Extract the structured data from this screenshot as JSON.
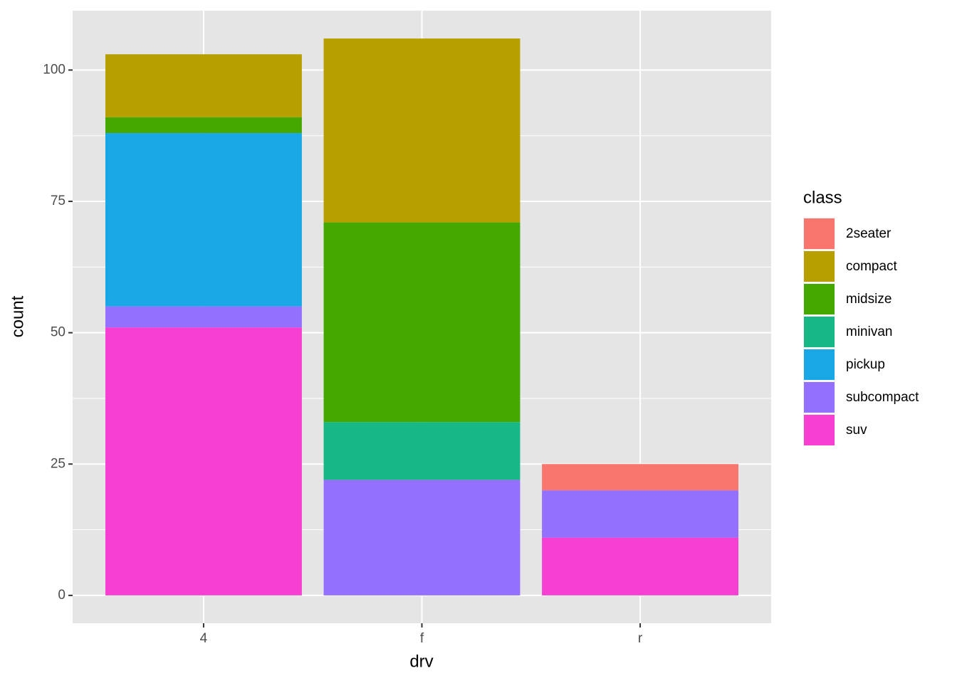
{
  "chart_data": {
    "type": "stacked-bar",
    "x_label": "drv",
    "y_label": "count",
    "legend_title": "class",
    "categories": [
      "4",
      "f",
      "r"
    ],
    "series": [
      {
        "name": "2seater",
        "color": "#f8766d",
        "values": [
          0,
          0,
          5
        ]
      },
      {
        "name": "compact",
        "color": "#b79f00",
        "values": [
          12,
          35,
          0
        ]
      },
      {
        "name": "midsize",
        "color": "#45a800",
        "values": [
          3,
          38,
          0
        ]
      },
      {
        "name": "minivan",
        "color": "#18b886",
        "values": [
          0,
          11,
          0
        ]
      },
      {
        "name": "pickup",
        "color": "#19a7e5",
        "values": [
          33,
          0,
          0
        ]
      },
      {
        "name": "subcompact",
        "color": "#9470ff",
        "values": [
          4,
          22,
          9
        ]
      },
      {
        "name": "suv",
        "color": "#f73fd2",
        "values": [
          51,
          0,
          11
        ]
      }
    ],
    "ylim": [
      -5.3,
      111.3
    ],
    "yticks": [
      0,
      25,
      50,
      75,
      100
    ],
    "grid": true,
    "legend": "right"
  }
}
